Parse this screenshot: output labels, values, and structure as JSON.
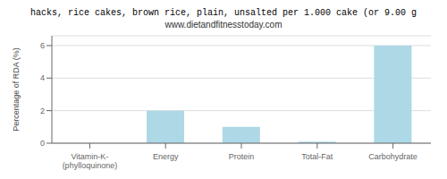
{
  "chart_data": {
    "type": "bar",
    "title": "hacks, rice cakes, brown rice, plain, unsalted per 1.000 cake (or 9.00 g",
    "subtitle": "www.dietandfitnesstoday.com",
    "categories": [
      "Vitamin-K-(phylloquinone)",
      "Energy",
      "Protein",
      "Total-Fat",
      "Carbohydrate"
    ],
    "values": [
      0.0,
      2.0,
      1.0,
      0.1,
      6.0
    ],
    "color": "#add8e6",
    "ylabel": "Percentage of RDA (%)",
    "ylim": [
      0,
      6.6
    ],
    "yticks": [
      0,
      2,
      4,
      6
    ],
    "grid": true
  }
}
